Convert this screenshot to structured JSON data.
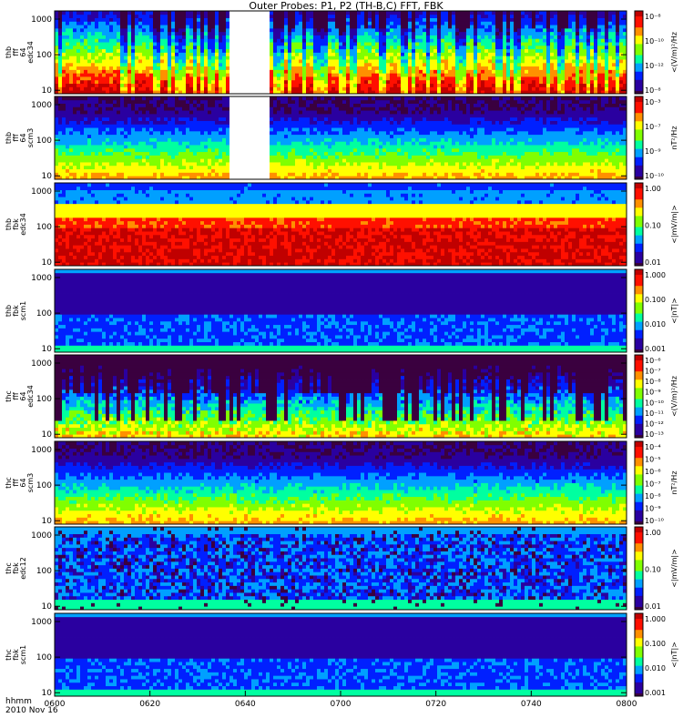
{
  "title": "Outer Probes: P1, P2 (TH-B,C) FFT, FBK",
  "time_axis": {
    "label_line1": "hhmm",
    "label_line2": "2010 Nov 16",
    "ticks": [
      "0600",
      "0620",
      "0640",
      "0700",
      "0720",
      "0740",
      "0800"
    ],
    "range": [
      "06:00",
      "08:00"
    ]
  },
  "colors": {
    "background": "#ffffff",
    "colormap": [
      "#ffffff",
      "#3a003f",
      "#2a00a0",
      "#0020ff",
      "#00a0ff",
      "#00ffa0",
      "#80ff00",
      "#ffff00",
      "#ff9000",
      "#ff1000",
      "#c00000"
    ]
  },
  "chart_data": [
    {
      "type": "heatmap",
      "ylabel": [
        "thb",
        "fff",
        "64",
        "edc34"
      ],
      "yscale": "log",
      "yticks": [
        "10",
        "100",
        "1000"
      ],
      "colorbar": {
        "label": "<(V/m)²/Hz",
        "scale": "log",
        "ticks": [
          "10⁻⁸",
          "10⁻¹⁰",
          "10⁻¹²",
          "10⁻⁸"
        ]
      },
      "data_gaps": [
        [
          "06:37",
          "06:45"
        ]
      ],
      "style": "spiky"
    },
    {
      "type": "heatmap",
      "ylabel": [
        "thb",
        "fff",
        "64",
        "scm3"
      ],
      "yscale": "log",
      "yticks": [
        "10",
        "100",
        "1000"
      ],
      "colorbar": {
        "label": "nT²/Hz",
        "scale": "log",
        "ticks": [
          "10⁻³",
          "10⁻⁷",
          "10⁻⁹",
          "10⁻¹⁰"
        ]
      },
      "data_gaps": [
        [
          "06:37",
          "06:45"
        ]
      ],
      "style": "banded-noisy"
    },
    {
      "type": "heatmap",
      "ylabel": [
        "thb",
        "fbk",
        "edc34"
      ],
      "yscale": "log",
      "yticks": [
        "10",
        "100",
        "1000"
      ],
      "colorbar": {
        "label": "<|mV/m|>",
        "scale": "log",
        "ticks": [
          "1.00",
          "0.10",
          "0.01"
        ]
      },
      "data_gaps": [],
      "style": "fbk-e"
    },
    {
      "type": "heatmap",
      "ylabel": [
        "thb",
        "fbk",
        "scm1"
      ],
      "yscale": "log",
      "yticks": [
        "10",
        "100",
        "1000"
      ],
      "colorbar": {
        "label": "<|nT|>",
        "scale": "log",
        "ticks": [
          "1.000",
          "0.100",
          "0.010",
          "0.001"
        ]
      },
      "data_gaps": [],
      "style": "fbk-b"
    },
    {
      "type": "heatmap",
      "ylabel": [
        "thc",
        "fff",
        "64",
        "edc34"
      ],
      "yscale": "log",
      "yticks": [
        "10",
        "100",
        "1000"
      ],
      "colorbar": {
        "label": "<(V/m)²/Hz",
        "scale": "log",
        "ticks": [
          "10⁻⁶",
          "10⁻⁷",
          "10⁻⁸",
          "10⁻⁹",
          "10⁻¹⁰",
          "10⁻¹¹",
          "10⁻¹²",
          "10⁻¹³"
        ]
      },
      "data_gaps": [],
      "style": "spiky-sparse"
    },
    {
      "type": "heatmap",
      "ylabel": [
        "thc",
        "fff",
        "64",
        "scm3"
      ],
      "yscale": "log",
      "yticks": [
        "10",
        "100",
        "1000"
      ],
      "colorbar": {
        "label": "nT²/Hz",
        "scale": "log",
        "ticks": [
          "10⁻⁴",
          "10⁻⁵",
          "10⁻⁶",
          "10⁻⁷",
          "10⁻⁸",
          "10⁻⁹",
          "10⁻¹⁰"
        ]
      },
      "data_gaps": [],
      "style": "banded-noisy"
    },
    {
      "type": "heatmap",
      "ylabel": [
        "thc",
        "fbk",
        "edc12"
      ],
      "yscale": "log",
      "yticks": [
        "10",
        "100",
        "1000"
      ],
      "colorbar": {
        "label": "<|mV/m|>",
        "scale": "log",
        "ticks": [
          "1.00",
          "0.10",
          "0.01"
        ]
      },
      "data_gaps": [],
      "style": "fbk-e2"
    },
    {
      "type": "heatmap",
      "ylabel": [
        "thc",
        "fbk",
        "scm1"
      ],
      "yscale": "log",
      "yticks": [
        "10",
        "100",
        "1000"
      ],
      "colorbar": {
        "label": "<|nT|>",
        "scale": "log",
        "ticks": [
          "1.000",
          "0.100",
          "0.010",
          "0.001"
        ]
      },
      "data_gaps": [],
      "style": "fbk-b"
    }
  ]
}
